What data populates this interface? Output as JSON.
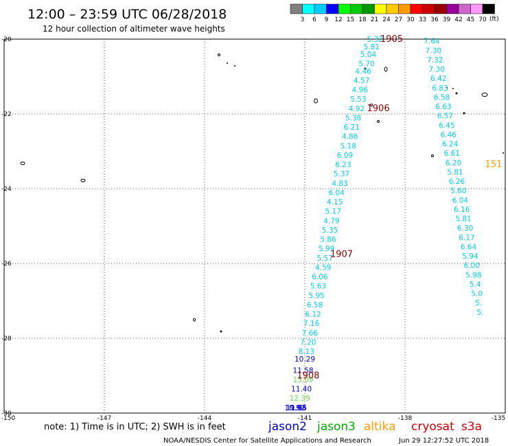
{
  "header": {
    "title": "12:00 – 23:59 UTC 06/28/2018",
    "subtitle": "12 hour collection of altimeter wave heights"
  },
  "colorbar": {
    "unit_label": "(ft)",
    "bins": [
      {
        "label": "3",
        "color": "#808080"
      },
      {
        "label": "6",
        "color": "#00ffff"
      },
      {
        "label": "9",
        "color": "#00ccff"
      },
      {
        "label": "12",
        "color": "#0000ff"
      },
      {
        "label": "15",
        "color": "#00ff00"
      },
      {
        "label": "18",
        "color": "#00cc00"
      },
      {
        "label": "21",
        "color": "#009900"
      },
      {
        "label": "24",
        "color": "#ffff00"
      },
      {
        "label": "27",
        "color": "#ffcc00"
      },
      {
        "label": "30",
        "color": "#ff9900"
      },
      {
        "label": "33",
        "color": "#ff0000"
      },
      {
        "label": "36",
        "color": "#cc0000"
      },
      {
        "label": "39",
        "color": "#990000"
      },
      {
        "label": "42",
        "color": "#990099"
      },
      {
        "label": "45",
        "color": "#cc66cc"
      },
      {
        "label": "70",
        "color": "#ff99ff"
      },
      {
        "label": "",
        "color": "#000000"
      }
    ]
  },
  "footer": {
    "note": "note: 1) Time is in UTC; 2) SWH is in feet",
    "credit": "NOAA/NESDIS Center for Satellite Applications and Research",
    "timestamp": "Jun 29 12:27:52 UTC 2018",
    "satellites": [
      {
        "name": "jason2",
        "color": "#0000cc"
      },
      {
        "name": "jason3",
        "color": "#00aa00"
      },
      {
        "name": "altika",
        "color": "#ff9900"
      },
      {
        "name": "cryosat",
        "color": "#cc0000"
      },
      {
        "name": "s3a",
        "color": "#cc0000"
      }
    ]
  },
  "chart_data": {
    "type": "scatter",
    "xlim": [
      -150,
      -135
    ],
    "ylim": [
      -30,
      -20
    ],
    "x_ticks": [
      "-150",
      "-147",
      "-144",
      "-141",
      "-138",
      "-135"
    ],
    "y_ticks": [
      "-20",
      "-22",
      "-24",
      "-26",
      "-28",
      "-30"
    ],
    "grid": true,
    "track_time_labels": [
      {
        "text": "1905",
        "x": -138.4,
        "y": -20.0,
        "color": "#880000"
      },
      {
        "text": "1906",
        "x": -138.8,
        "y": -21.85,
        "color": "#880000"
      },
      {
        "text": "1907",
        "x": -139.9,
        "y": -25.75,
        "color": "#880000"
      },
      {
        "text": "1908",
        "x": -140.9,
        "y": -29.0,
        "color": "#880000"
      },
      {
        "text": "151",
        "x": -135.35,
        "y": -23.35,
        "color": "#ff9900"
      }
    ],
    "series": [
      {
        "name": "jason3",
        "points": [
          {
            "x": -138.9,
            "y": -20.0,
            "v": "5.32",
            "c": "#00ccee"
          },
          {
            "x": -139.0,
            "y": -20.2,
            "v": "5.81",
            "c": "#00ccee"
          },
          {
            "x": -139.1,
            "y": -20.4,
            "v": "5.04",
            "c": "#00ccee"
          },
          {
            "x": -139.15,
            "y": -20.65,
            "v": "5.70",
            "c": "#00ccee"
          },
          {
            "x": -139.25,
            "y": -20.85,
            "v": "4.46",
            "c": "#00ccee"
          },
          {
            "x": -139.3,
            "y": -21.1,
            "v": "4.57",
            "c": "#00ccee"
          },
          {
            "x": -139.35,
            "y": -21.35,
            "v": "4.96",
            "c": "#00ccee"
          },
          {
            "x": -139.4,
            "y": -21.6,
            "v": "5.53",
            "c": "#00ccee"
          },
          {
            "x": -139.45,
            "y": -21.85,
            "v": "4.92",
            "c": "#00ccee"
          },
          {
            "x": -139.55,
            "y": -22.1,
            "v": "5.38",
            "c": "#00ccee"
          },
          {
            "x": -139.6,
            "y": -22.35,
            "v": "6.21",
            "c": "#00ccee"
          },
          {
            "x": -139.65,
            "y": -22.6,
            "v": "4.86",
            "c": "#00ccee"
          },
          {
            "x": -139.7,
            "y": -22.85,
            "v": "5.18",
            "c": "#00ccee"
          },
          {
            "x": -139.8,
            "y": -23.1,
            "v": "6.09",
            "c": "#00ccee"
          },
          {
            "x": -139.85,
            "y": -23.35,
            "v": "6.23",
            "c": "#00ccee"
          },
          {
            "x": -139.9,
            "y": -23.6,
            "v": "5.37",
            "c": "#00ccee"
          },
          {
            "x": -139.95,
            "y": -23.85,
            "v": "4.83",
            "c": "#00ccee"
          },
          {
            "x": -140.05,
            "y": -24.1,
            "v": "6.04",
            "c": "#00ccee"
          },
          {
            "x": -140.1,
            "y": -24.35,
            "v": "4.15",
            "c": "#00ccee"
          },
          {
            "x": -140.15,
            "y": -24.6,
            "v": "5.17",
            "c": "#00ccee"
          },
          {
            "x": -140.2,
            "y": -24.85,
            "v": "4.79",
            "c": "#00ccee"
          },
          {
            "x": -140.25,
            "y": -25.1,
            "v": "5.35",
            "c": "#00ccee"
          },
          {
            "x": -140.3,
            "y": -25.35,
            "v": "5.86",
            "c": "#00ccee"
          },
          {
            "x": -140.35,
            "y": -25.6,
            "v": "5.99",
            "c": "#00ccee"
          },
          {
            "x": -140.4,
            "y": -25.85,
            "v": "5.57",
            "c": "#00ccee"
          },
          {
            "x": -140.45,
            "y": -26.1,
            "v": "4.59",
            "c": "#00ccee"
          },
          {
            "x": -140.55,
            "y": -26.35,
            "v": "6.06",
            "c": "#00ccee"
          },
          {
            "x": -140.6,
            "y": -26.6,
            "v": "5.63",
            "c": "#00ccee"
          },
          {
            "x": -140.65,
            "y": -26.85,
            "v": "5.95",
            "c": "#00ccee"
          },
          {
            "x": -140.7,
            "y": -27.1,
            "v": "6.58",
            "c": "#00ccee"
          },
          {
            "x": -140.75,
            "y": -27.35,
            "v": "6.12",
            "c": "#00ccee"
          },
          {
            "x": -140.8,
            "y": -27.6,
            "v": "7.16",
            "c": "#00ccee"
          },
          {
            "x": -140.85,
            "y": -27.85,
            "v": "7.66",
            "c": "#00ccee"
          },
          {
            "x": -140.9,
            "y": -28.1,
            "v": "7.20",
            "c": "#00ccee"
          },
          {
            "x": -140.95,
            "y": -28.35,
            "v": "8.13",
            "c": "#00ccee"
          },
          {
            "x": -141.0,
            "y": -28.55,
            "v": "10.29",
            "c": "#0000cc"
          },
          {
            "x": -141.05,
            "y": -28.85,
            "v": "11.58",
            "c": "#0000cc"
          },
          {
            "x": -141.05,
            "y": -29.1,
            "v": "13.09",
            "c": "#66dd44"
          },
          {
            "x": -141.1,
            "y": -29.35,
            "v": "11.40",
            "c": "#0000cc"
          },
          {
            "x": -141.15,
            "y": -29.6,
            "v": "12.39",
            "c": "#66dd44"
          },
          {
            "x": -141.2,
            "y": -29.85,
            "v": "9.93",
            "c": "#0000cc"
          },
          {
            "x": -141.25,
            "y": -30.1,
            "v": "11.06",
            "c": "#0000cc"
          },
          {
            "x": -141.3,
            "y": -30.35,
            "v": "10.92",
            "c": "#0000cc"
          }
        ]
      },
      {
        "name": "jason2",
        "points": [
          {
            "x": -137.2,
            "y": -20.05,
            "v": "7.64",
            "c": "#00ccee"
          },
          {
            "x": -137.15,
            "y": -20.3,
            "v": "7.30",
            "c": "#00ccee"
          },
          {
            "x": -137.1,
            "y": -20.55,
            "v": "7.32",
            "c": "#00ccee"
          },
          {
            "x": -137.05,
            "y": -20.8,
            "v": "7.30",
            "c": "#00ccee"
          },
          {
            "x": -137.0,
            "y": -21.05,
            "v": "6.42",
            "c": "#00ccee"
          },
          {
            "x": -136.95,
            "y": -21.3,
            "v": "6.83",
            "c": "#00ccee"
          },
          {
            "x": -136.9,
            "y": -21.55,
            "v": "6.58",
            "c": "#00ccee"
          },
          {
            "x": -136.85,
            "y": -21.8,
            "v": "6.63",
            "c": "#00ccee"
          },
          {
            "x": -136.8,
            "y": -22.05,
            "v": "6.57",
            "c": "#00ccee"
          },
          {
            "x": -136.75,
            "y": -22.3,
            "v": "6.45",
            "c": "#00ccee"
          },
          {
            "x": -136.7,
            "y": -22.55,
            "v": "6.46",
            "c": "#00ccee"
          },
          {
            "x": -136.65,
            "y": -22.8,
            "v": "6.24",
            "c": "#00ccee"
          },
          {
            "x": -136.6,
            "y": -23.05,
            "v": "6.61",
            "c": "#00ccee"
          },
          {
            "x": -136.55,
            "y": -23.3,
            "v": "6.20",
            "c": "#00ccee"
          },
          {
            "x": -136.5,
            "y": -23.55,
            "v": "5.81",
            "c": "#00ccee"
          },
          {
            "x": -136.45,
            "y": -23.8,
            "v": "6.26",
            "c": "#00ccee"
          },
          {
            "x": -136.4,
            "y": -24.05,
            "v": "5.60",
            "c": "#00ccee"
          },
          {
            "x": -136.35,
            "y": -24.3,
            "v": "6.04",
            "c": "#00ccee"
          },
          {
            "x": -136.3,
            "y": -24.55,
            "v": "6.16",
            "c": "#00ccee"
          },
          {
            "x": -136.25,
            "y": -24.8,
            "v": "5.81",
            "c": "#00ccee"
          },
          {
            "x": -136.2,
            "y": -25.05,
            "v": "6.30",
            "c": "#00ccee"
          },
          {
            "x": -136.15,
            "y": -25.3,
            "v": "6.17",
            "c": "#00ccee"
          },
          {
            "x": -136.1,
            "y": -25.55,
            "v": "6.64",
            "c": "#00ccee"
          },
          {
            "x": -136.05,
            "y": -25.8,
            "v": "5.94",
            "c": "#00ccee"
          },
          {
            "x": -136.0,
            "y": -26.05,
            "v": "6.00",
            "c": "#00ccee"
          },
          {
            "x": -135.95,
            "y": -26.3,
            "v": "5.98",
            "c": "#00ccee"
          },
          {
            "x": -135.9,
            "y": -26.55,
            "v": "5.4",
            "c": "#00ccee"
          },
          {
            "x": -135.85,
            "y": -26.8,
            "v": "5.0",
            "c": "#00ccee"
          },
          {
            "x": -135.8,
            "y": -27.05,
            "v": "5.",
            "c": "#00ccee"
          },
          {
            "x": -135.75,
            "y": -27.3,
            "v": "5.",
            "c": "#00ccee"
          }
        ]
      }
    ]
  }
}
